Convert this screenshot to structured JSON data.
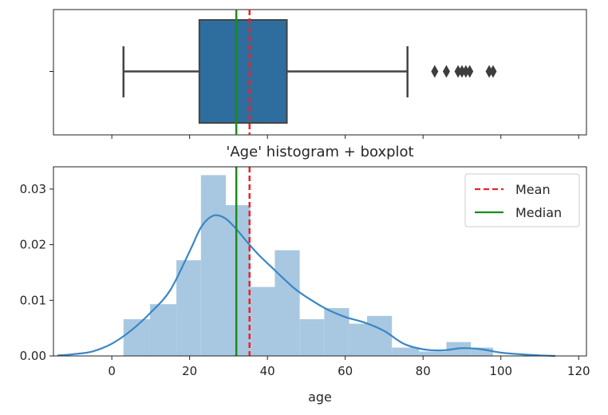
{
  "chart_data": [
    {
      "type": "box",
      "variable": "age",
      "whisker_low": 3,
      "q1": 22.5,
      "median": 32,
      "q3": 45,
      "whisker_high": 76,
      "mean": 35.4,
      "outliers": [
        83,
        86,
        89,
        90,
        91,
        92,
        97,
        98
      ],
      "xlim": [
        -15,
        122
      ],
      "box_color": "#2e6e9e",
      "line_color": "#444444",
      "mean_color": "#ee2222",
      "median_color": "#1a8c1a"
    },
    {
      "type": "histogram",
      "title": "'Age' histogram + boxplot",
      "xlabel": "age",
      "ylabel": "",
      "xlim": [
        -15,
        122
      ],
      "ylim": [
        0,
        0.034
      ],
      "xticks": [
        "0",
        "20",
        "40",
        "60",
        "80",
        "100",
        "120"
      ],
      "xtick_values": [
        0,
        20,
        40,
        60,
        80,
        100,
        120
      ],
      "yticks": [
        "0.00",
        "0.01",
        "0.02",
        "0.03"
      ],
      "ytick_values": [
        0,
        0.01,
        0.02,
        0.03
      ],
      "bins": [
        {
          "x0": 3.0,
          "x1": 9.8,
          "density": 0.0066
        },
        {
          "x0": 9.8,
          "x1": 16.6,
          "density": 0.0093
        },
        {
          "x0": 16.6,
          "x1": 22.9,
          "density": 0.0172
        },
        {
          "x0": 22.9,
          "x1": 29.3,
          "density": 0.0325
        },
        {
          "x0": 29.3,
          "x1": 35.6,
          "density": 0.0271
        },
        {
          "x0": 35.6,
          "x1": 41.9,
          "density": 0.0124
        },
        {
          "x0": 41.9,
          "x1": 48.3,
          "density": 0.019
        },
        {
          "x0": 48.3,
          "x1": 54.6,
          "density": 0.0066
        },
        {
          "x0": 54.6,
          "x1": 61.0,
          "density": 0.0086
        },
        {
          "x0": 61.0,
          "x1": 65.6,
          "density": 0.0058
        },
        {
          "x0": 65.6,
          "x1": 72.0,
          "density": 0.0072
        },
        {
          "x0": 72.0,
          "x1": 79.0,
          "density": 0.0015
        },
        {
          "x0": 79.0,
          "x1": 86.0,
          "density": 0.0008
        },
        {
          "x0": 86.0,
          "x1": 92.3,
          "density": 0.0025
        },
        {
          "x0": 92.3,
          "x1": 98.0,
          "density": 0.0015
        }
      ],
      "kde": {
        "x": [
          -14,
          -10,
          -5,
          0,
          5,
          10,
          15,
          20,
          23,
          26,
          29,
          32,
          35,
          38,
          41,
          44,
          47,
          50,
          55,
          60,
          65,
          70,
          75,
          80,
          85,
          90,
          95,
          100,
          105,
          110,
          114
        ],
        "y": [
          0.0001,
          0.0003,
          0.0008,
          0.0022,
          0.0046,
          0.0078,
          0.0118,
          0.0188,
          0.0232,
          0.0252,
          0.0248,
          0.0228,
          0.0203,
          0.018,
          0.016,
          0.014,
          0.0121,
          0.0106,
          0.0085,
          0.007,
          0.006,
          0.0045,
          0.0022,
          0.0012,
          0.001,
          0.0014,
          0.0012,
          0.0006,
          0.0003,
          0.0001,
          0.0
        ]
      },
      "mean": 35.4,
      "median": 32,
      "hist_color": "#a8c8e1",
      "kde_color": "#3a87c4",
      "legend": [
        {
          "label": "Mean",
          "style": "dashed",
          "color": "#ee2222"
        },
        {
          "label": "Median",
          "style": "solid",
          "color": "#1a8c1a"
        }
      ],
      "legend_position": "top-right"
    }
  ]
}
